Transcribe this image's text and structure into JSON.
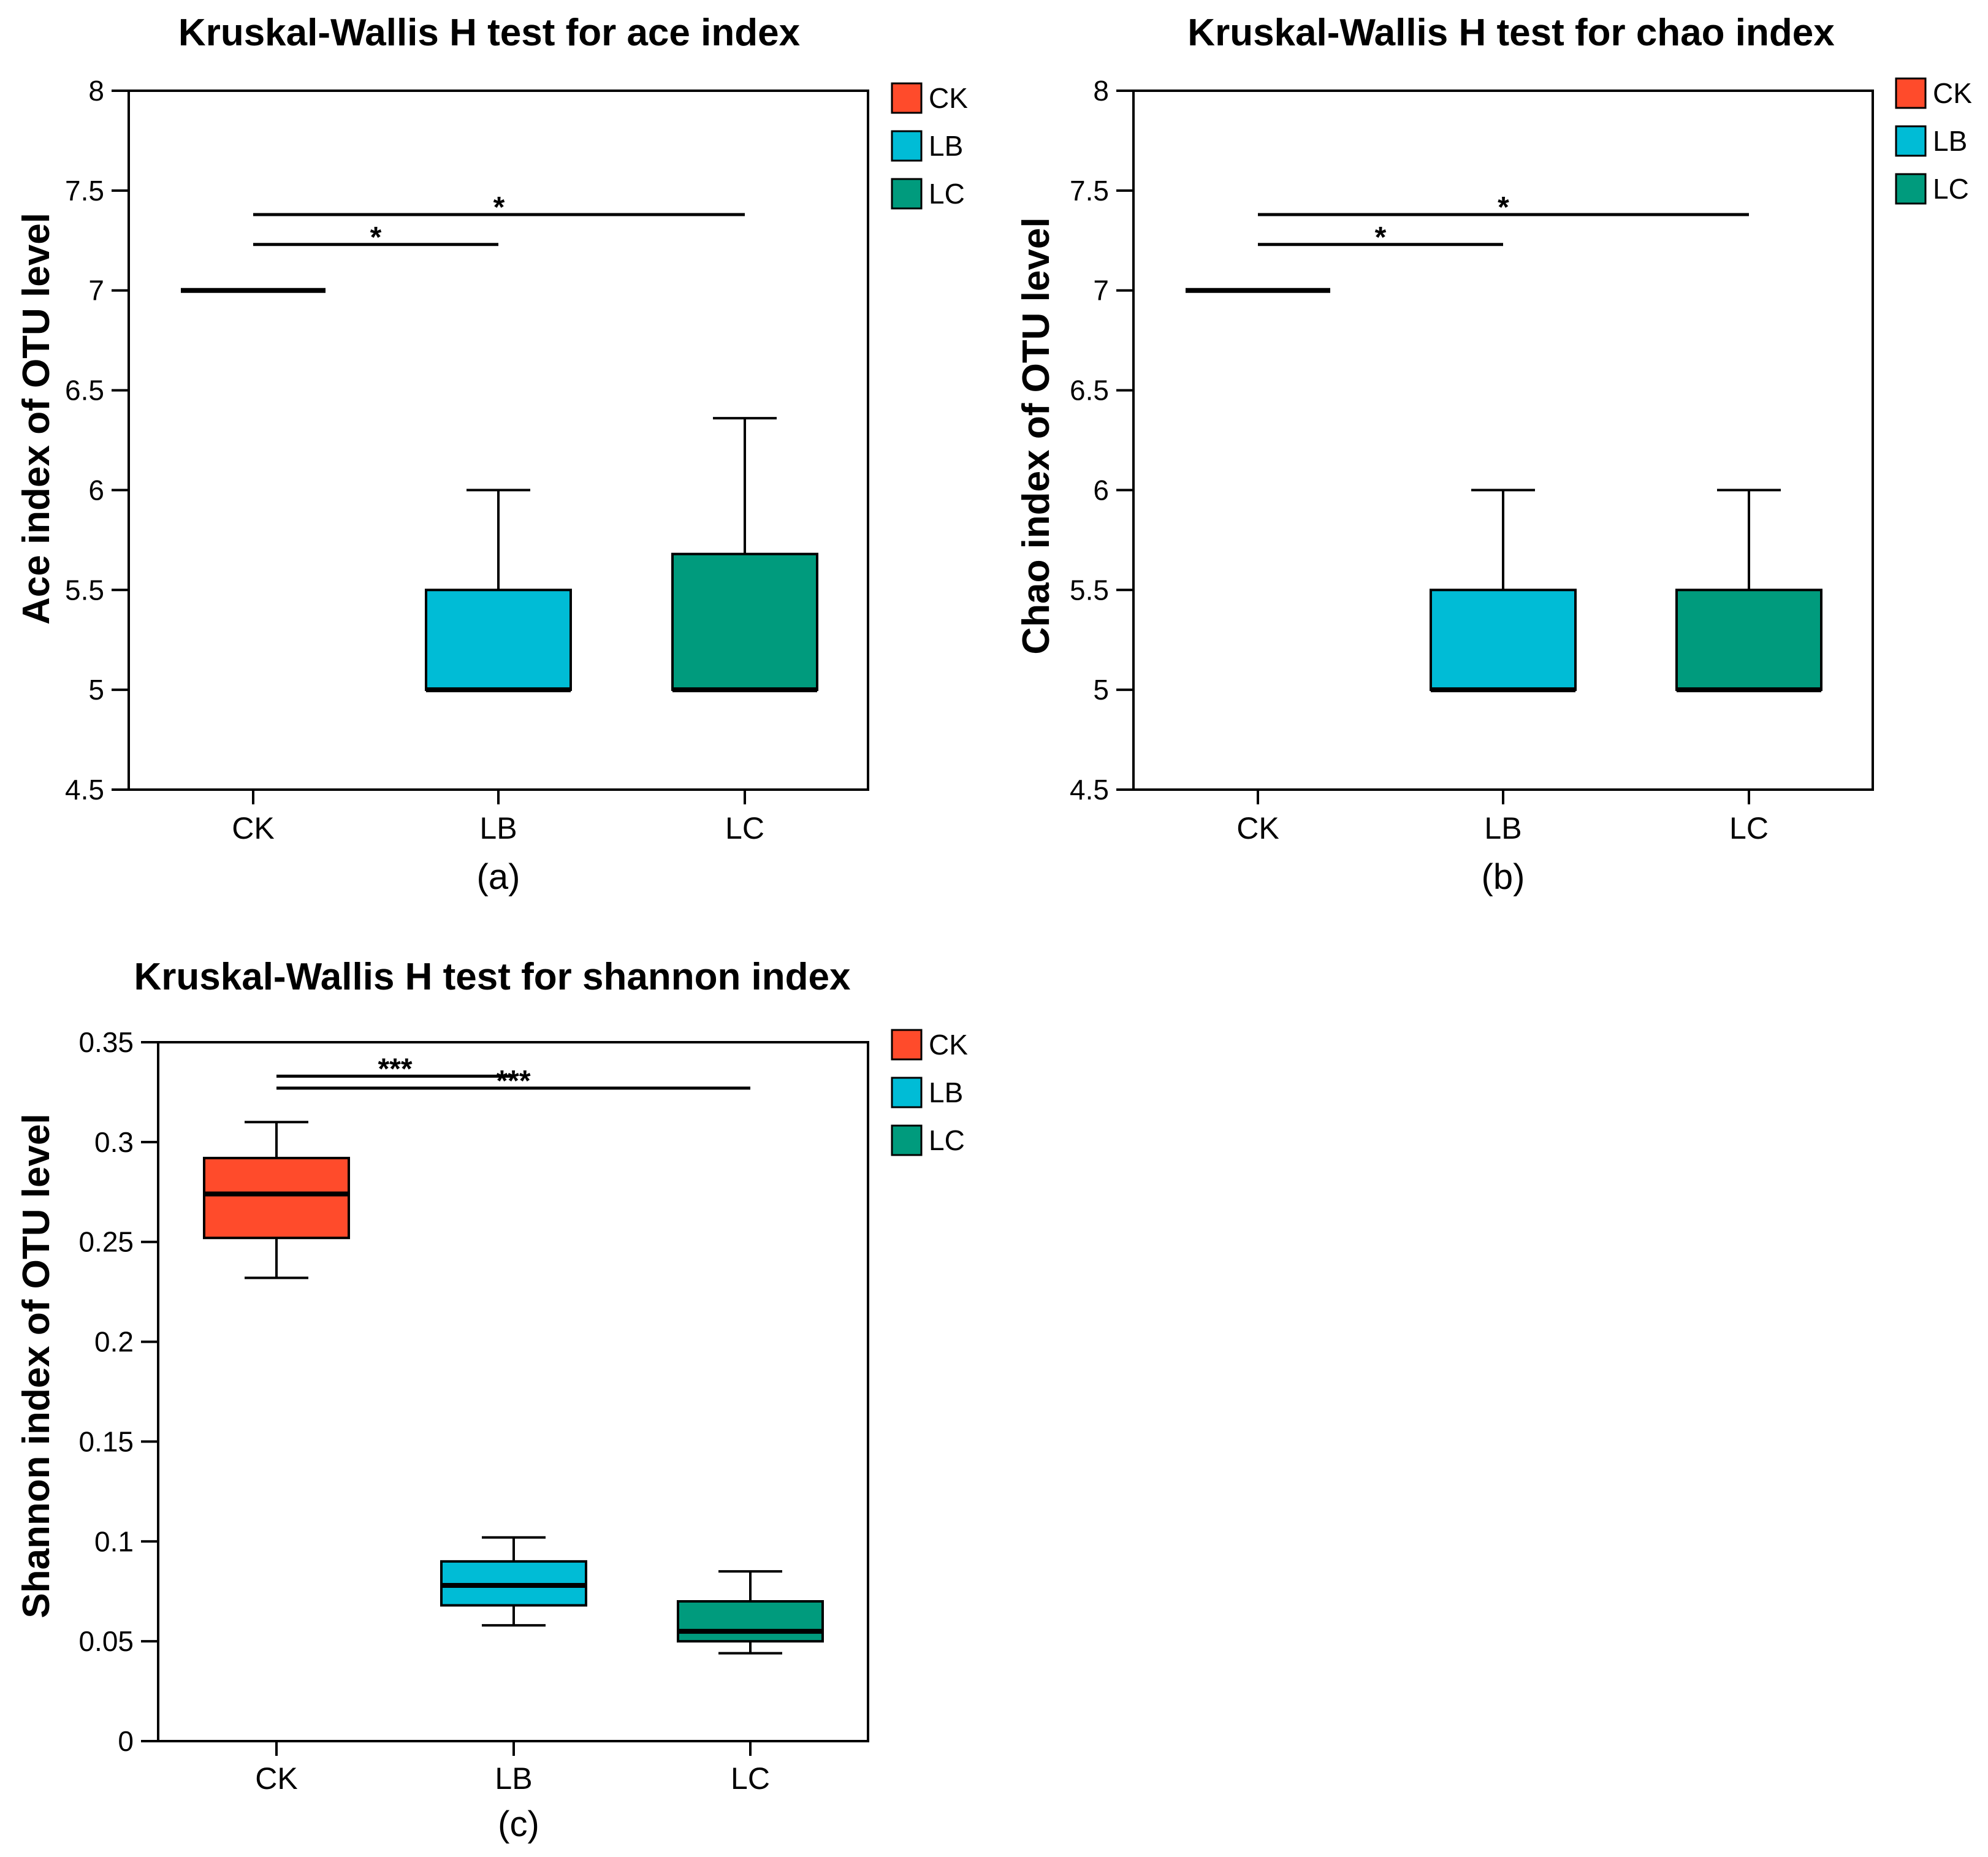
{
  "colors": {
    "CK": "#ff4b2b",
    "LB": "#00bcd6",
    "LC": "#009b7d",
    "axis": "#000000"
  },
  "chart_data": [
    {
      "type": "box",
      "title": "Kruskal-Wallis H test for ace index",
      "ylabel": "Ace index of OTU level",
      "panel_label": "(a)",
      "categories": [
        "CK",
        "LB",
        "LC"
      ],
      "ylim": [
        4.5,
        8
      ],
      "yticks": [
        "4.5",
        "5",
        "5.5",
        "6",
        "6.5",
        "7",
        "7.5",
        "8"
      ],
      "ytick_values": [
        4.5,
        5,
        5.5,
        6,
        6.5,
        7,
        7.5,
        8
      ],
      "grid": false,
      "legend": {
        "position": "right",
        "entries": [
          "CK",
          "LB",
          "LC"
        ]
      },
      "boxes": [
        {
          "group": "CK",
          "min": 7,
          "q1": 7,
          "median": 7,
          "q3": 7,
          "max": 7
        },
        {
          "group": "LB",
          "min": 5,
          "q1": 5,
          "median": 5,
          "q3": 5.5,
          "max": 6
        },
        {
          "group": "LC",
          "min": 5,
          "q1": 5,
          "median": 5,
          "q3": 5.68,
          "max": 6.36
        }
      ],
      "significance": [
        {
          "from": "CK",
          "to": "LB",
          "y": 7.23,
          "label": "*"
        },
        {
          "from": "CK",
          "to": "LC",
          "y": 7.38,
          "label": "*"
        }
      ]
    },
    {
      "type": "box",
      "title": "Kruskal-Wallis H test for chao index",
      "ylabel": "Chao index of OTU level",
      "panel_label": "(b)",
      "categories": [
        "CK",
        "LB",
        "LC"
      ],
      "ylim": [
        4.5,
        8
      ],
      "yticks": [
        "4.5",
        "5",
        "5.5",
        "6",
        "6.5",
        "7",
        "7.5",
        "8"
      ],
      "ytick_values": [
        4.5,
        5,
        5.5,
        6,
        6.5,
        7,
        7.5,
        8
      ],
      "grid": false,
      "legend": {
        "position": "right",
        "entries": [
          "CK",
          "LB",
          "LC"
        ]
      },
      "boxes": [
        {
          "group": "CK",
          "min": 7,
          "q1": 7,
          "median": 7,
          "q3": 7,
          "max": 7
        },
        {
          "group": "LB",
          "min": 5,
          "q1": 5,
          "median": 5,
          "q3": 5.5,
          "max": 6
        },
        {
          "group": "LC",
          "min": 5,
          "q1": 5,
          "median": 5,
          "q3": 5.5,
          "max": 6
        }
      ],
      "significance": [
        {
          "from": "CK",
          "to": "LB",
          "y": 7.23,
          "label": "*"
        },
        {
          "from": "CK",
          "to": "LC",
          "y": 7.38,
          "label": "*"
        }
      ]
    },
    {
      "type": "box",
      "title": "Kruskal-Wallis H test for shannon index",
      "ylabel": "Shannon index of OTU level",
      "panel_label": "(c)",
      "categories": [
        "CK",
        "LB",
        "LC"
      ],
      "ylim": [
        0,
        0.35
      ],
      "yticks": [
        "0",
        "0.05",
        "0.1",
        "0.15",
        "0.2",
        "0.25",
        "0.3",
        "0.35"
      ],
      "ytick_values": [
        0,
        0.05,
        0.1,
        0.15,
        0.2,
        0.25,
        0.3,
        0.35
      ],
      "grid": false,
      "legend": {
        "position": "right",
        "entries": [
          "CK",
          "LB",
          "LC"
        ]
      },
      "boxes": [
        {
          "group": "CK",
          "min": 0.232,
          "q1": 0.252,
          "median": 0.274,
          "q3": 0.292,
          "max": 0.31
        },
        {
          "group": "LB",
          "min": 0.058,
          "q1": 0.068,
          "median": 0.078,
          "q3": 0.09,
          "max": 0.102
        },
        {
          "group": "LC",
          "min": 0.044,
          "q1": 0.05,
          "median": 0.055,
          "q3": 0.07,
          "max": 0.085
        }
      ],
      "significance": [
        {
          "from": "CK",
          "to": "LB",
          "y": 0.333,
          "label": "***"
        },
        {
          "from": "CK",
          "to": "LC",
          "y": 0.327,
          "label": "***"
        }
      ]
    }
  ]
}
